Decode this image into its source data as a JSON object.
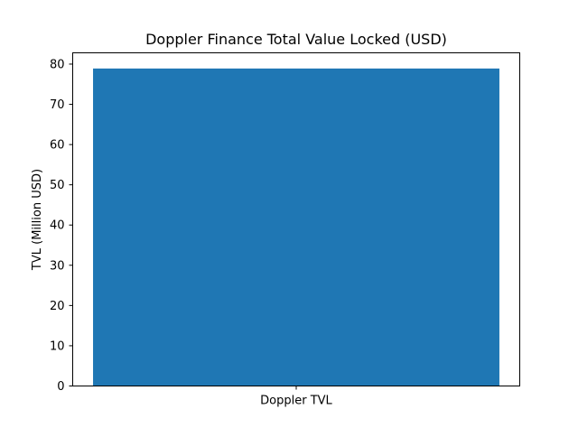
{
  "chart_data": {
    "type": "bar",
    "title": "Doppler Finance Total Value Locked (USD)",
    "xlabel": "",
    "ylabel": "TVL (Million USD)",
    "categories": [
      "Doppler TVL"
    ],
    "values": [
      78.9
    ],
    "ylim": [
      0,
      82.8
    ],
    "yticks": [
      0,
      10,
      20,
      30,
      40,
      50,
      60,
      70,
      80
    ],
    "grid": false,
    "legend": null,
    "colors": {
      "bar": "#1f77b4",
      "axes": "#000000",
      "background": "#ffffff"
    }
  }
}
